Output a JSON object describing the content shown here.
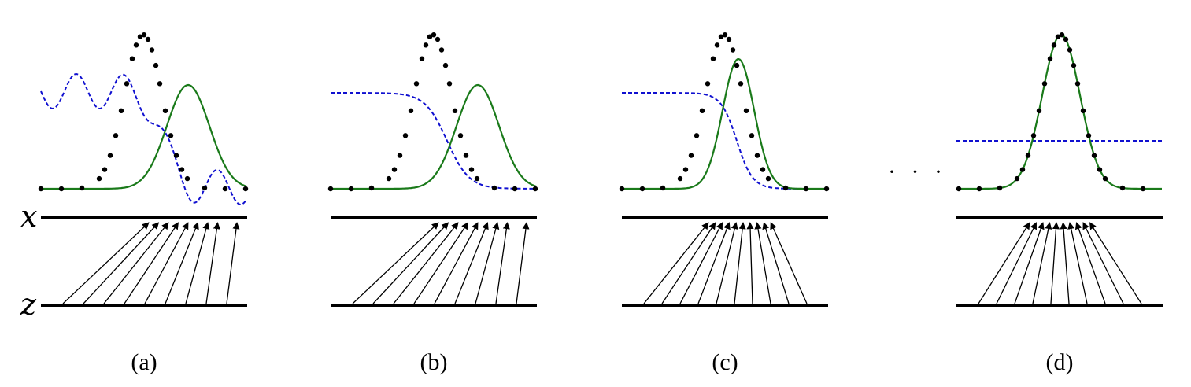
{
  "axis_labels": {
    "x": "x",
    "z": "z"
  },
  "ellipsis": "· · ·",
  "panels": [
    {
      "caption": "(a)",
      "mapping": "offset",
      "discriminator": "wavy",
      "generator": "shifted"
    },
    {
      "caption": "(b)",
      "mapping": "offset",
      "discriminator": "sigmoid",
      "generator": "shifted"
    },
    {
      "caption": "(c)",
      "mapping": "converging",
      "discriminator": "sigmoid-steep",
      "generator": "near"
    },
    {
      "caption": "(d)",
      "mapping": "centered",
      "discriminator": "flat-half",
      "generator": "matched"
    }
  ],
  "colors": {
    "data_points": "#000000",
    "generator": "#1a7a1a",
    "discriminator": "#1010d0",
    "lines": "#000000"
  }
}
